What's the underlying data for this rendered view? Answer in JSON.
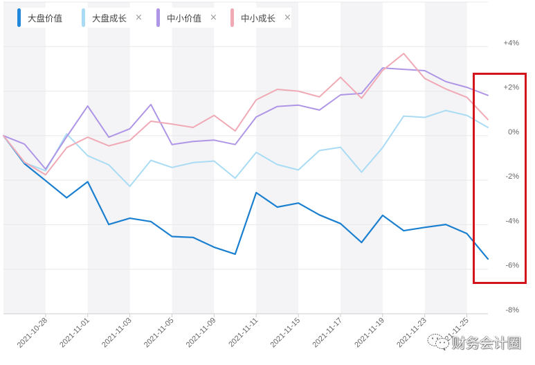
{
  "colors": {
    "background": "#ffffff",
    "band": "#f4f4f6",
    "grid": "#e8e8e8",
    "axis": "#cccccc",
    "tick_text": "#666666",
    "highlight_box": "#d3151b"
  },
  "legend": {
    "items": [
      {
        "label": "大盘价值",
        "color": "#2188dc",
        "closable": false,
        "close_glyph": ""
      },
      {
        "label": "大盘成长",
        "color": "#a9dcf4",
        "closable": true,
        "close_glyph": "×"
      },
      {
        "label": "中小价值",
        "color": "#ae95e6",
        "closable": true,
        "close_glyph": "×"
      },
      {
        "label": "中小成长",
        "color": "#f0aab5",
        "closable": true,
        "close_glyph": "×"
      }
    ]
  },
  "watermark": {
    "text": "财务会计圈",
    "icon": "wechat-icon"
  },
  "chart_data": {
    "type": "line",
    "title": "",
    "xlabel": "",
    "ylabel": "",
    "ylim": [
      -8,
      6
    ],
    "grid": true,
    "gridlines": [
      6,
      4,
      2,
      0,
      -2,
      -4,
      -6
    ],
    "legend_position": "top-left",
    "x_count": 24,
    "x_tick_labels": [
      {
        "index": 2,
        "label": "2021-10-28"
      },
      {
        "index": 4,
        "label": "2021-11-01"
      },
      {
        "index": 6,
        "label": "2021-11-03"
      },
      {
        "index": 8,
        "label": "2021-11-05"
      },
      {
        "index": 10,
        "label": "2021-11-09"
      },
      {
        "index": 12,
        "label": "2021-11-11"
      },
      {
        "index": 14,
        "label": "2021-11-15"
      },
      {
        "index": 16,
        "label": "2021-11-17"
      },
      {
        "index": 18,
        "label": "2021-11-19"
      },
      {
        "index": 20,
        "label": "2021-11-23"
      },
      {
        "index": 22,
        "label": "2021-11-25"
      }
    ],
    "y_ticks": [
      {
        "value": 4,
        "label": "+4%"
      },
      {
        "value": 2,
        "label": "+2%"
      },
      {
        "value": 0,
        "label": "0%"
      },
      {
        "value": -2,
        "label": "-2%"
      },
      {
        "value": -4,
        "label": "-4%"
      },
      {
        "value": -6,
        "label": "-6%"
      },
      {
        "value": -8,
        "label": "-8%"
      }
    ],
    "series": [
      {
        "key": "large-cap-value",
        "name": "大盘价值",
        "color": "#1b7fd0",
        "width": 2.2,
        "values": [
          0,
          -1.26,
          -2.02,
          -2.79,
          -2.07,
          -3.99,
          -3.71,
          -3.86,
          -4.53,
          -4.57,
          -5.01,
          -5.32,
          -2.56,
          -3.21,
          -3.03,
          -3.56,
          -3.95,
          -4.8,
          -3.58,
          -4.27,
          -4.12,
          -3.99,
          -4.4,
          -5.54
        ]
      },
      {
        "key": "large-cap-growth",
        "name": "大盘成长",
        "color": "#a9dcf4",
        "width": 2,
        "values": [
          0,
          -1.21,
          -1.58,
          0.08,
          -0.9,
          -1.31,
          -2.28,
          -1.11,
          -1.43,
          -1.21,
          -1.14,
          -1.91,
          -0.75,
          -1.3,
          -1.54,
          -0.67,
          -0.52,
          -1.64,
          -0.54,
          0.88,
          0.82,
          1.13,
          0.91,
          0.37
        ]
      },
      {
        "key": "small-mid-value",
        "name": "中小价值",
        "color": "#ae95e6",
        "width": 2,
        "values": [
          0,
          -0.38,
          -1.5,
          -0.05,
          1.33,
          -0.07,
          0.31,
          1.4,
          -0.4,
          -0.26,
          -0.2,
          -0.4,
          0.84,
          1.31,
          1.37,
          1.15,
          1.83,
          1.9,
          3.04,
          2.98,
          2.92,
          2.43,
          2.17,
          1.81
        ]
      },
      {
        "key": "small-mid-growth",
        "name": "中小成长",
        "color": "#f0aab5",
        "width": 2,
        "values": [
          0,
          -1.19,
          -1.76,
          -0.54,
          -0.07,
          -0.46,
          -0.21,
          0.65,
          0.52,
          0.37,
          0.91,
          0.21,
          1.61,
          2.08,
          2.0,
          1.74,
          2.62,
          1.68,
          2.93,
          3.69,
          2.57,
          2.1,
          1.72,
          0.72
        ]
      }
    ]
  }
}
